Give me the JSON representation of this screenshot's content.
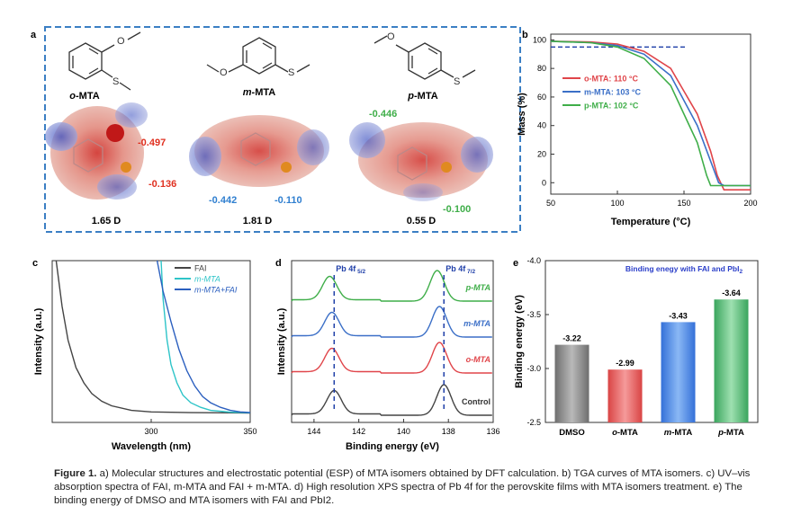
{
  "panel_a": {
    "label": "a",
    "molecules": [
      {
        "name": "o-MTA",
        "prefix": "o",
        "suffix": "-MTA",
        "dipole": "1.65 D",
        "esp_labels": [
          {
            "value": "-0.497",
            "color": "#e03020"
          },
          {
            "value": "-0.136",
            "color": "#e03020"
          }
        ]
      },
      {
        "name": "m-MTA",
        "prefix": "m",
        "suffix": "-MTA",
        "dipole": "1.81 D",
        "esp_labels": [
          {
            "value": "-0.442",
            "color": "#2f7fd0"
          },
          {
            "value": "-0.110",
            "color": "#2f7fd0"
          }
        ]
      },
      {
        "name": "p-MTA",
        "prefix": "p",
        "suffix": "-MTA",
        "dipole": "0.55 D",
        "esp_labels": [
          {
            "value": "-0.446",
            "color": "#3fae49"
          },
          {
            "value": "-0.100",
            "color": "#3fae49"
          }
        ]
      }
    ],
    "atom_labels": {
      "o": "O",
      "s": "S"
    }
  },
  "chart_data": [
    {
      "panel": "b",
      "type": "line",
      "title": "",
      "xlabel": "Temperature (°C)",
      "ylabel": "Mass (%)",
      "xlim": [
        50,
        200
      ],
      "ylim": [
        -8,
        104
      ],
      "xticks": [
        "50",
        "100",
        "150",
        "200"
      ],
      "yticks": [
        "0",
        "20",
        "40",
        "60",
        "80",
        "100"
      ],
      "reference_line": {
        "y": 95,
        "x": [
          50,
          152
        ]
      },
      "series": [
        {
          "name": "o-MTA",
          "label": "o-MTA: 110 °C",
          "color": "#e0454a",
          "x": [
            50,
            80,
            100,
            120,
            140,
            160,
            170,
            175,
            180,
            200
          ],
          "y": [
            99,
            98.5,
            97,
            92,
            80,
            48,
            22,
            5,
            -5,
            -5
          ]
        },
        {
          "name": "m-MTA",
          "label": "m-MTA: 103 °C",
          "color": "#3b6fc7",
          "x": [
            50,
            80,
            100,
            120,
            140,
            160,
            170,
            176,
            180,
            200
          ],
          "y": [
            99,
            98,
            96,
            90,
            75,
            40,
            15,
            0,
            -2,
            -2
          ]
        },
        {
          "name": "p-MTA",
          "label": "p-MTA: 102 °C",
          "color": "#3fae49",
          "x": [
            50,
            80,
            100,
            120,
            140,
            160,
            167,
            170,
            200
          ],
          "y": [
            99,
            98,
            95,
            87,
            68,
            28,
            5,
            -2,
            -2
          ]
        }
      ]
    },
    {
      "panel": "c",
      "type": "line",
      "title": "",
      "xlabel": "Wavelength (nm)",
      "ylabel": "Intensity (a.u.)",
      "xlim": [
        250,
        350
      ],
      "ylim": [
        0,
        1
      ],
      "xticks": [
        "300",
        "350"
      ],
      "series": [
        {
          "name": "FAI",
          "color": "#444444",
          "x": [
            252,
            255,
            258,
            262,
            266,
            270,
            275,
            280,
            290,
            300,
            320,
            350
          ],
          "y": [
            1.0,
            0.7,
            0.48,
            0.3,
            0.2,
            0.13,
            0.08,
            0.05,
            0.02,
            0.01,
            0.005,
            0.003
          ]
        },
        {
          "name": "m-MTA",
          "color": "#2ec4c8",
          "x": [
            305,
            306,
            308,
            310,
            313,
            316,
            320,
            325,
            330,
            340,
            350
          ],
          "y": [
            1.0,
            0.75,
            0.48,
            0.32,
            0.2,
            0.12,
            0.07,
            0.04,
            0.02,
            0.008,
            0.004
          ]
        },
        {
          "name": "m-MTA+FAI",
          "color": "#2b5fbf",
          "x": [
            303,
            306,
            310,
            314,
            318,
            322,
            326,
            330,
            335,
            340,
            345,
            350
          ],
          "y": [
            1.0,
            0.8,
            0.6,
            0.42,
            0.28,
            0.18,
            0.11,
            0.07,
            0.04,
            0.02,
            0.01,
            0.006
          ]
        }
      ]
    },
    {
      "panel": "d",
      "type": "line",
      "title": "",
      "xlabel": "Binding energy (eV)",
      "ylabel": "Intensity (a.u.)",
      "xlim": [
        145,
        136
      ],
      "xticks": [
        "144",
        "142",
        "140",
        "138",
        "136"
      ],
      "peak_markers": [
        {
          "x": 143.1,
          "label_main": "Pb 4f",
          "label_sub": "5/2"
        },
        {
          "x": 138.2,
          "label_main": "Pb 4f",
          "label_sub": "7/2"
        }
      ],
      "series": [
        {
          "name": "Control",
          "color": "#444444",
          "peaks": [
            143.1,
            138.2
          ]
        },
        {
          "name": "o-MTA",
          "color": "#e0454a",
          "peaks": [
            143.2,
            138.4
          ]
        },
        {
          "name": "m-MTA",
          "color": "#3b6fc7",
          "peaks": [
            143.2,
            138.4
          ]
        },
        {
          "name": "p-MTA",
          "color": "#3fae49",
          "peaks": [
            143.3,
            138.5
          ]
        }
      ]
    },
    {
      "panel": "e",
      "type": "bar",
      "title": "Binding enegy with FAI and PbI",
      "title_sub": "2",
      "xlabel": "",
      "ylabel": "Binding energy (eV)",
      "ylim": [
        -2.5,
        -4.0
      ],
      "yticks": [
        "-4.0",
        "-3.5",
        "-3.0",
        "-2.5"
      ],
      "categories": [
        "DMSO",
        "o-MTA",
        "m-MTA",
        "p-MTA"
      ],
      "values": [
        -3.22,
        -2.99,
        -3.43,
        -3.64
      ],
      "value_labels": [
        "-3.22",
        "-2.99",
        "-3.43",
        "-3.64"
      ],
      "colors": [
        "#888888",
        "#e86060",
        "#4a86e0",
        "#5cc07a"
      ]
    }
  ],
  "caption": {
    "lead": "Figure 1.",
    "text": " a) Molecular structures and electrostatic potential (ESP) of MTA isomers obtained by DFT calculation. b) TGA curves of MTA isomers. c) UV–vis absorption spectra of FAI, m-MTA and FAI + m-MTA. d) High resolution XPS spectra of Pb 4f for the perovskite films with MTA isomers treatment. e) The binding energy of DMSO and MTA isomers with FAI and PbI2."
  }
}
